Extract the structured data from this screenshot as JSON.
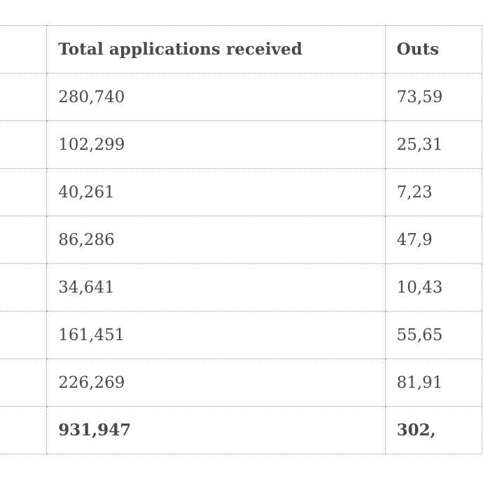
{
  "table": {
    "headers": [
      "",
      "Total applications received",
      "Outs"
    ],
    "rows": [
      {
        "received": "280,740",
        "outstanding": "73,59"
      },
      {
        "received": "102,299",
        "outstanding": "25,31"
      },
      {
        "received": "40,261",
        "outstanding": "7,23"
      },
      {
        "received": "86,286",
        "outstanding": "47,9"
      },
      {
        "received": "34,641",
        "outstanding": "10,43"
      },
      {
        "received": "161,451",
        "outstanding": "55,65"
      },
      {
        "received": "226,269",
        "outstanding": "81,91"
      }
    ],
    "total": {
      "received": "931,947",
      "outstanding": "302,"
    }
  }
}
